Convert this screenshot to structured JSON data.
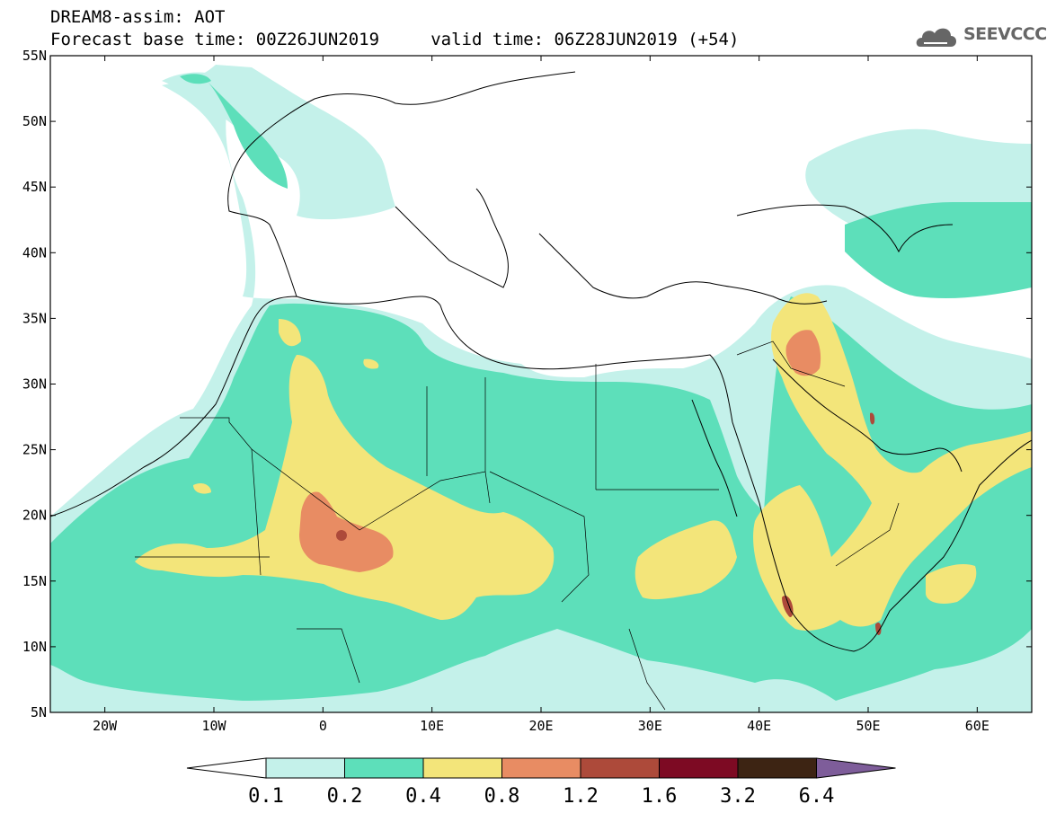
{
  "header": {
    "line1": "DREAM8-assim: AOT",
    "line2": "Forecast base time: 00Z26JUN2019     valid time: 06Z28JUN2019 (+54)"
  },
  "logo": {
    "text": "SEEVCCC",
    "icon": "cloud-icon"
  },
  "map": {
    "lat_labels": [
      "55N",
      "50N",
      "45N",
      "40N",
      "35N",
      "30N",
      "25N",
      "20N",
      "15N",
      "10N",
      "5N"
    ],
    "lat_values": [
      55,
      50,
      45,
      40,
      35,
      30,
      25,
      20,
      15,
      10,
      5
    ],
    "lon_labels": [
      "20W",
      "10W",
      "0",
      "10E",
      "20E",
      "30E",
      "40E",
      "50E",
      "60E"
    ],
    "lon_values": [
      -20,
      -10,
      0,
      10,
      20,
      30,
      40,
      50,
      60
    ],
    "lon_range": [
      -25,
      65
    ],
    "lat_range": [
      5,
      55
    ]
  },
  "colorbar": {
    "labels": [
      "0.1",
      "0.2",
      "0.4",
      "0.8",
      "1.2",
      "1.6",
      "3.2",
      "6.4"
    ],
    "colors": [
      "#ffffff",
      "#c4f1ea",
      "#5ddfba",
      "#f3e57a",
      "#e88c63",
      "#ad4a3a",
      "#7d0a23",
      "#3d2413",
      "#7e5d9a"
    ]
  }
}
